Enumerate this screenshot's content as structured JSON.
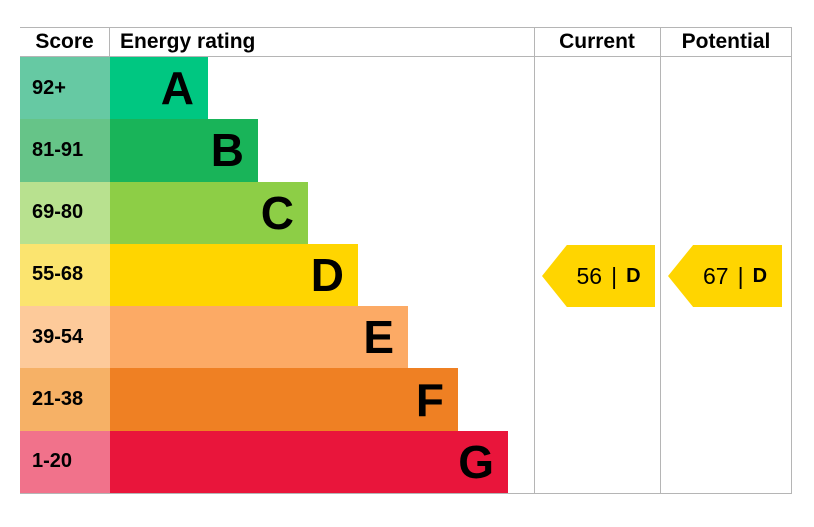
{
  "header": {
    "score_label": "Score",
    "energy_rating_label": "Energy rating",
    "current_label": "Current",
    "potential_label": "Potential"
  },
  "bands": [
    {
      "letter": "A",
      "score_range": "92+",
      "bar_color": "#00c781",
      "score_cell_color": "#66c9a3"
    },
    {
      "letter": "B",
      "score_range": "81-91",
      "bar_color": "#19b459",
      "score_cell_color": "#66c488"
    },
    {
      "letter": "C",
      "score_range": "69-80",
      "bar_color": "#8dce46",
      "score_cell_color": "#b8e18f"
    },
    {
      "letter": "D",
      "score_range": "55-68",
      "bar_color": "#ffd500",
      "score_cell_color": "#fbe46f"
    },
    {
      "letter": "E",
      "score_range": "39-54",
      "bar_color": "#fcaa65",
      "score_cell_color": "#fdca9a"
    },
    {
      "letter": "F",
      "score_range": "21-38",
      "bar_color": "#ef8023",
      "score_cell_color": "#f6b166"
    },
    {
      "letter": "G",
      "score_range": "1-20",
      "bar_color": "#e9153b",
      "score_cell_color": "#f1728b"
    }
  ],
  "current": {
    "value": "56",
    "separator": "|",
    "rating": "D",
    "arrow_color": "#ffd500"
  },
  "potential": {
    "value": "67",
    "separator": "|",
    "rating": "D",
    "arrow_color": "#ffd500"
  },
  "grid_color": "#b5b5b5",
  "chart_data": {
    "type": "bar",
    "title": "Energy rating",
    "categories": [
      "A",
      "B",
      "C",
      "D",
      "E",
      "F",
      "G"
    ],
    "score_ranges": [
      "92+",
      "81-91",
      "69-80",
      "55-68",
      "39-54",
      "21-38",
      "1-20"
    ],
    "band_colors": [
      "#00c781",
      "#19b459",
      "#8dce46",
      "#ffd500",
      "#fcaa65",
      "#ef8023",
      "#e9153b"
    ],
    "columns": [
      "Score",
      "Energy rating",
      "Current",
      "Potential"
    ],
    "bar_relative_widths": [
      98,
      148,
      198,
      248,
      298,
      348,
      398
    ],
    "current": {
      "score": 56,
      "rating": "D"
    },
    "potential": {
      "score": 67,
      "rating": "D"
    },
    "legend_position": "none",
    "grid": "column-separators-only"
  }
}
